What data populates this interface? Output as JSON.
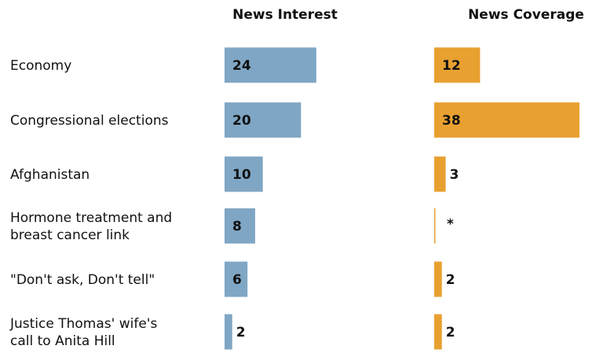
{
  "chart_data": {
    "type": "bar",
    "categories": [
      [
        "Economy"
      ],
      [
        "Congressional elections"
      ],
      [
        "Afghanistan"
      ],
      [
        "Hormone treatment and",
        "breast cancer link"
      ],
      [
        "\"Don't ask, Don't tell\""
      ],
      [
        "Justice Thomas' wife's",
        "call to Anita Hill"
      ]
    ],
    "series": [
      {
        "name": "News Interest",
        "color": "#7fa6c4",
        "values": [
          24,
          20,
          10,
          8,
          6,
          2
        ],
        "labels": [
          "24",
          "20",
          "10",
          "8",
          "6",
          "2"
        ]
      },
      {
        "name": "News Coverage",
        "color": "#e8a030",
        "values": [
          12,
          38,
          3,
          0.2,
          2,
          2
        ],
        "labels": [
          "12",
          "38",
          "3",
          "*",
          "2",
          "2"
        ]
      }
    ]
  }
}
